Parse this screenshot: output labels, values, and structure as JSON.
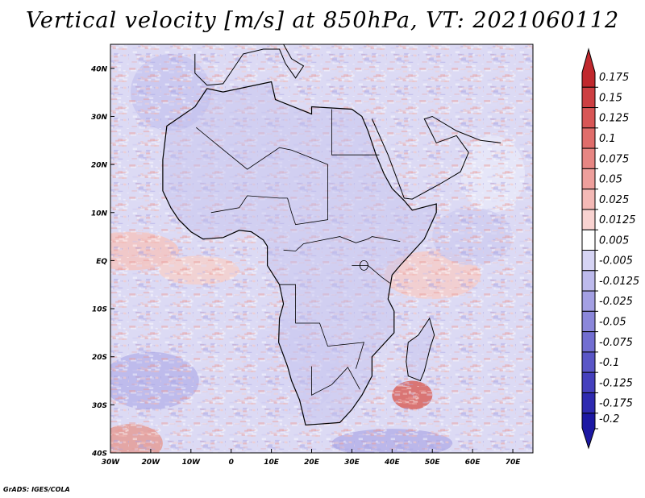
{
  "chart_data": {
    "type": "heatmap",
    "title": "Vertical velocity [m/s] at 850hPa, VT: 2021060112",
    "variable": "Vertical velocity",
    "units": "m/s",
    "level": "850hPa",
    "valid_time": "2021060112",
    "x_range": [
      -30,
      75
    ],
    "y_range": [
      -40,
      45
    ],
    "x_ticks": [
      -30,
      -20,
      -10,
      0,
      10,
      20,
      30,
      40,
      50,
      60,
      70
    ],
    "x_tick_labels": [
      "30W",
      "20W",
      "10W",
      "0",
      "10E",
      "20E",
      "30E",
      "40E",
      "50E",
      "60E",
      "70E"
    ],
    "y_ticks": [
      40,
      30,
      20,
      10,
      0,
      -10,
      -20,
      -30,
      -40
    ],
    "y_tick_labels": [
      "40N",
      "30N",
      "20N",
      "10N",
      "EQ",
      "10S",
      "20S",
      "30S",
      "40S"
    ],
    "colorbar_levels": [
      "0.175",
      "0.15",
      "0.125",
      "0.1",
      "0.075",
      "0.05",
      "0.025",
      "0.0125",
      "0.005",
      "-0.005",
      "-0.0125",
      "-0.025",
      "-0.05",
      "-0.075",
      "-0.1",
      "-0.125",
      "-0.175",
      "-0.2"
    ],
    "colorbar_colors": [
      "#c0282d",
      "#cd3f42",
      "#d85656",
      "#e06d6b",
      "#e78683",
      "#ee9f9c",
      "#f4b9b6",
      "#f9d3d1",
      "#ffffff",
      "#d6d4f4",
      "#bdbaec",
      "#a4a0e3",
      "#8b87da",
      "#726ed1",
      "#5a56c7",
      "#4540bd",
      "#2e2ab0",
      "#1c18a3"
    ]
  },
  "footer": "GrADS: IGES/COLA"
}
